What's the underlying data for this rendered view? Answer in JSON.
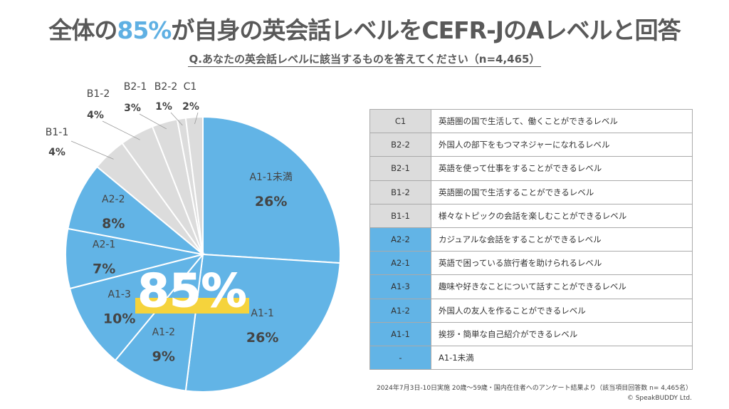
{
  "title": {
    "prefix": "全体の",
    "highlight": "85%",
    "suffix": "が自身の英会話レベルをCEFR-JのAレベルと回答"
  },
  "subtitle": "Q.あなたの英会話レベルに該当するものを答えてください（n=4,465）",
  "colors": {
    "a_level": "#62b4e6",
    "b_c_level": "#dcdcdc",
    "highlight_bar": "#f5d33c",
    "title_accent": "#5fb0e3"
  },
  "chart_data": {
    "type": "pie",
    "start": "12 o'clock, clockwise",
    "slices": [
      {
        "label": "A1-1未満",
        "value": 26,
        "display": "26%",
        "group": "A"
      },
      {
        "label": "A1-1",
        "value": 26,
        "display": "26%",
        "group": "A"
      },
      {
        "label": "A1-2",
        "value": 9,
        "display": "9%",
        "group": "A"
      },
      {
        "label": "A1-3",
        "value": 10,
        "display": "10%",
        "group": "A"
      },
      {
        "label": "A2-1",
        "value": 7,
        "display": "7%",
        "group": "A"
      },
      {
        "label": "A2-2",
        "value": 8,
        "display": "8%",
        "group": "A"
      },
      {
        "label": "B1-1",
        "value": 4,
        "display": "4%",
        "group": "B"
      },
      {
        "label": "B1-2",
        "value": 4,
        "display": "4%",
        "group": "B"
      },
      {
        "label": "B2-1",
        "value": 3,
        "display": "3%",
        "group": "B"
      },
      {
        "label": "B2-2",
        "value": 1,
        "display": "1%",
        "group": "B"
      },
      {
        "label": "C1",
        "value": 2,
        "display": "2%",
        "group": "C"
      }
    ],
    "annotation": "85%"
  },
  "table": [
    {
      "level": "C1",
      "desc": "英語圏の国で生活して、働くことができるレベル",
      "group": "B"
    },
    {
      "level": "B2-2",
      "desc": "外国人の部下をもつマネジャーになれるレベル",
      "group": "B"
    },
    {
      "level": "B2-1",
      "desc": "英語を使って仕事をすることができるレベル",
      "group": "B"
    },
    {
      "level": "B1-2",
      "desc": "英語圏の国で生活することができるレベル",
      "group": "B"
    },
    {
      "level": "B1-1",
      "desc": "様々なトピックの会話を楽しむことができるレベル",
      "group": "B"
    },
    {
      "level": "A2-2",
      "desc": "カジュアルな会話をすることができるレベル",
      "group": "A"
    },
    {
      "level": "A2-1",
      "desc": "英語で困っている旅行者を助けられるレベル",
      "group": "A"
    },
    {
      "level": "A1-3",
      "desc": "趣味や好きなことについて話すことができるレベル",
      "group": "A"
    },
    {
      "level": "A1-2",
      "desc": "外国人の友人を作ることができるレベル",
      "group": "A"
    },
    {
      "level": "A1-1",
      "desc": "挨拶・簡単な自己紹介ができるレベル",
      "group": "A"
    },
    {
      "level": "-",
      "desc": "A1-1未満",
      "group": "A"
    }
  ],
  "footer": {
    "note": "2024年7月3日-10日実施 20歳〜59歳・国内在住者へのアンケート結果より（該当項目回答数 n= 4,465名）",
    "copyright": "© SpeakBUDDY Ltd."
  }
}
